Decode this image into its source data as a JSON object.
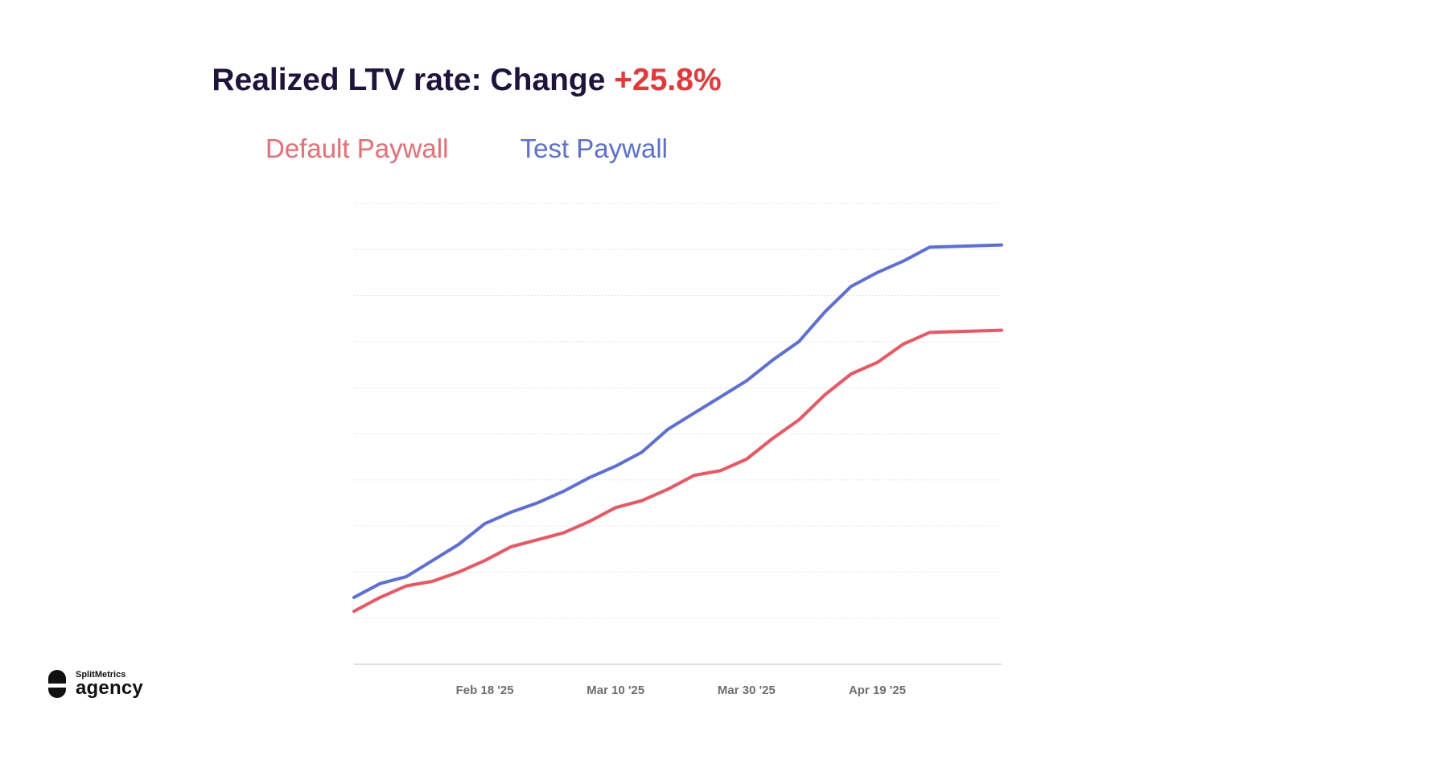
{
  "title": {
    "prefix": "Realized LTV rate: Change",
    "change": "+25.8%",
    "change_color": "#ee3535",
    "color": "#1f1440"
  },
  "legend": {
    "items": [
      {
        "label": "Default Paywall",
        "color": "#ef6b72"
      },
      {
        "label": "Test Paywall",
        "color": "#5a6fdd"
      }
    ]
  },
  "logo": {
    "small_text": "SplitMetrics",
    "big_text": "agency"
  },
  "chart_data": {
    "type": "line",
    "title": "Realized LTV rate: Change +25.8%",
    "x_start": "2025-01-29",
    "x_end": "2025-05-08",
    "x_ticks": [
      {
        "date": "2025-02-18",
        "label": "Feb 18 '25"
      },
      {
        "date": "2025-03-10",
        "label": "Mar 10 '25"
      },
      {
        "date": "2025-03-30",
        "label": "Mar 30 '25"
      },
      {
        "date": "2025-04-19",
        "label": "Apr 19 '25"
      }
    ],
    "ylim": [
      0,
      10
    ],
    "y_gridlines": 10,
    "y_tick_labels": false,
    "grid": true,
    "legend_position": "top",
    "series": [
      {
        "name": "Default Paywall",
        "color": "#ef5560",
        "points": [
          [
            "2025-01-29",
            1.15
          ],
          [
            "2025-02-02",
            1.45
          ],
          [
            "2025-02-06",
            1.7
          ],
          [
            "2025-02-10",
            1.8
          ],
          [
            "2025-02-14",
            2.0
          ],
          [
            "2025-02-18",
            2.25
          ],
          [
            "2025-02-22",
            2.55
          ],
          [
            "2025-02-26",
            2.7
          ],
          [
            "2025-03-02",
            2.85
          ],
          [
            "2025-03-06",
            3.1
          ],
          [
            "2025-03-10",
            3.4
          ],
          [
            "2025-03-14",
            3.55
          ],
          [
            "2025-03-18",
            3.8
          ],
          [
            "2025-03-22",
            4.1
          ],
          [
            "2025-03-26",
            4.2
          ],
          [
            "2025-03-30",
            4.45
          ],
          [
            "2025-04-03",
            4.9
          ],
          [
            "2025-04-07",
            5.3
          ],
          [
            "2025-04-11",
            5.85
          ],
          [
            "2025-04-15",
            6.3
          ],
          [
            "2025-04-19",
            6.55
          ],
          [
            "2025-04-23",
            6.95
          ],
          [
            "2025-04-27",
            7.2
          ],
          [
            "2025-05-08",
            7.25
          ]
        ]
      },
      {
        "name": "Test Paywall",
        "color": "#5a6fdd",
        "points": [
          [
            "2025-01-29",
            1.45
          ],
          [
            "2025-02-02",
            1.75
          ],
          [
            "2025-02-06",
            1.9
          ],
          [
            "2025-02-10",
            2.25
          ],
          [
            "2025-02-14",
            2.6
          ],
          [
            "2025-02-18",
            3.05
          ],
          [
            "2025-02-22",
            3.3
          ],
          [
            "2025-02-26",
            3.5
          ],
          [
            "2025-03-02",
            3.75
          ],
          [
            "2025-03-06",
            4.05
          ],
          [
            "2025-03-10",
            4.3
          ],
          [
            "2025-03-14",
            4.6
          ],
          [
            "2025-03-18",
            5.1
          ],
          [
            "2025-03-22",
            5.45
          ],
          [
            "2025-03-26",
            5.8
          ],
          [
            "2025-03-30",
            6.15
          ],
          [
            "2025-04-03",
            6.6
          ],
          [
            "2025-04-07",
            7.0
          ],
          [
            "2025-04-11",
            7.65
          ],
          [
            "2025-04-15",
            8.2
          ],
          [
            "2025-04-19",
            8.5
          ],
          [
            "2025-04-23",
            8.75
          ],
          [
            "2025-04-27",
            9.05
          ],
          [
            "2025-05-08",
            9.1
          ]
        ]
      }
    ]
  }
}
